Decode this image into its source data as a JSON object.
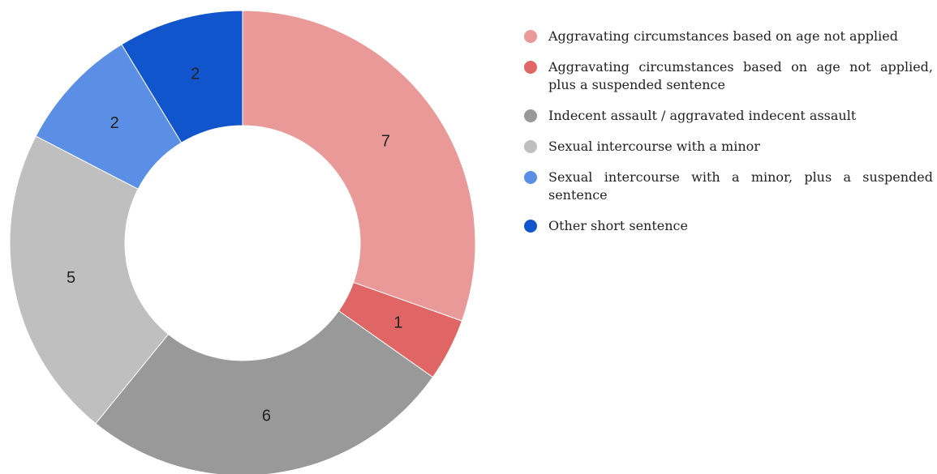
{
  "chart_data": {
    "type": "donut",
    "categories": [
      "Aggravating circumstances based on age not applied",
      "Aggravating circumstances based on age not applied, plus a suspended sentence",
      "Indecent assault / aggravated indecent assault",
      "Sexual intercourse with a minor",
      "Sexual intercourse with a minor, plus a suspended sentence",
      "Other short sentence"
    ],
    "values": [
      7,
      1,
      6,
      5,
      2,
      2
    ],
    "colors": [
      "#ea9999",
      "#e06666",
      "#999999",
      "#bfbfbf",
      "#5b8fe6",
      "#1155cc"
    ],
    "legend": "right"
  }
}
